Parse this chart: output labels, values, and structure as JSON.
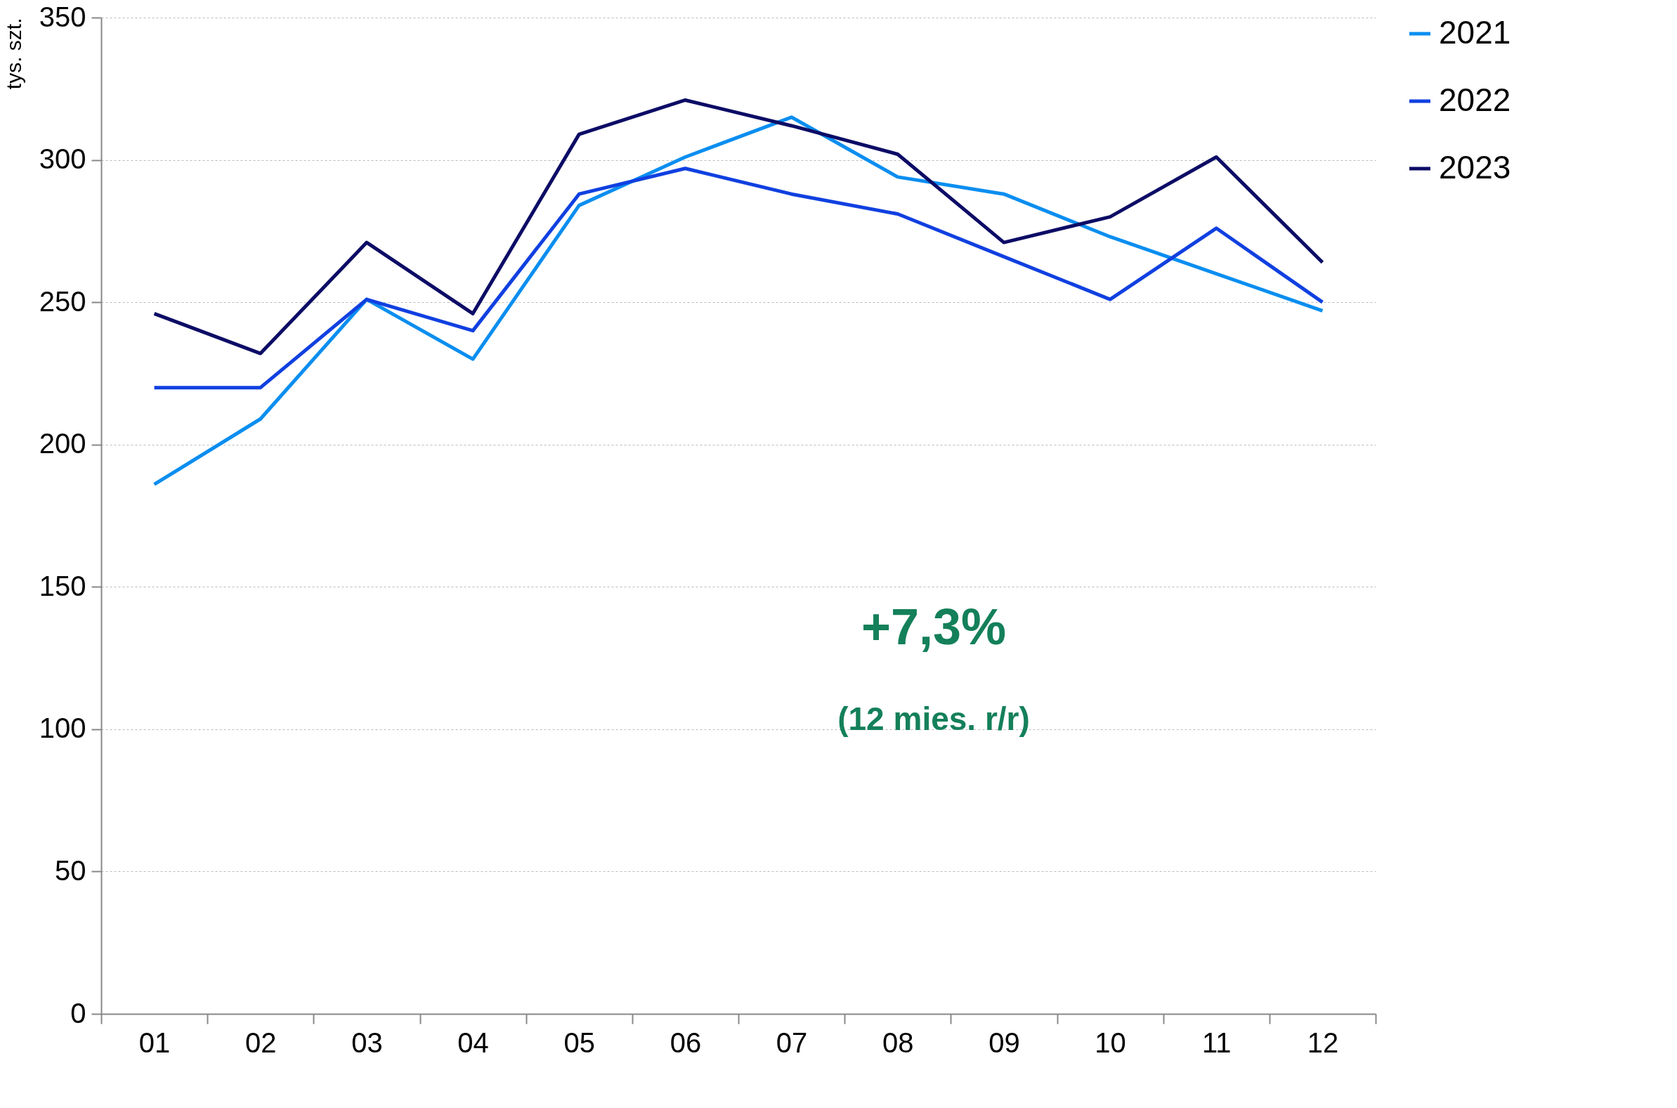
{
  "chart_data": {
    "type": "line",
    "ylabel": "tys. szt.",
    "categories": [
      "01",
      "02",
      "03",
      "04",
      "05",
      "06",
      "07",
      "08",
      "09",
      "10",
      "11",
      "12"
    ],
    "series": [
      {
        "name": "2021",
        "color": "#0a8ef0",
        "values": [
          186,
          209,
          251,
          230,
          284,
          301,
          315,
          294,
          288,
          273,
          260,
          247
        ]
      },
      {
        "name": "2022",
        "color": "#1040e0",
        "values": [
          220,
          220,
          251,
          240,
          288,
          297,
          288,
          281,
          266,
          251,
          276,
          250
        ]
      },
      {
        "name": "2023",
        "color": "#0c0c66",
        "values": [
          246,
          232,
          271,
          246,
          309,
          321,
          312,
          302,
          271,
          280,
          301,
          264
        ]
      }
    ],
    "ylim": [
      0,
      350
    ],
    "yticks": [
      0,
      50,
      100,
      150,
      200,
      250,
      300,
      350
    ],
    "grid": "y",
    "legend": "right",
    "marker": "none",
    "line_style": "solid",
    "annotations": [
      "+7,3%",
      "(12 mies. r/r)"
    ]
  }
}
